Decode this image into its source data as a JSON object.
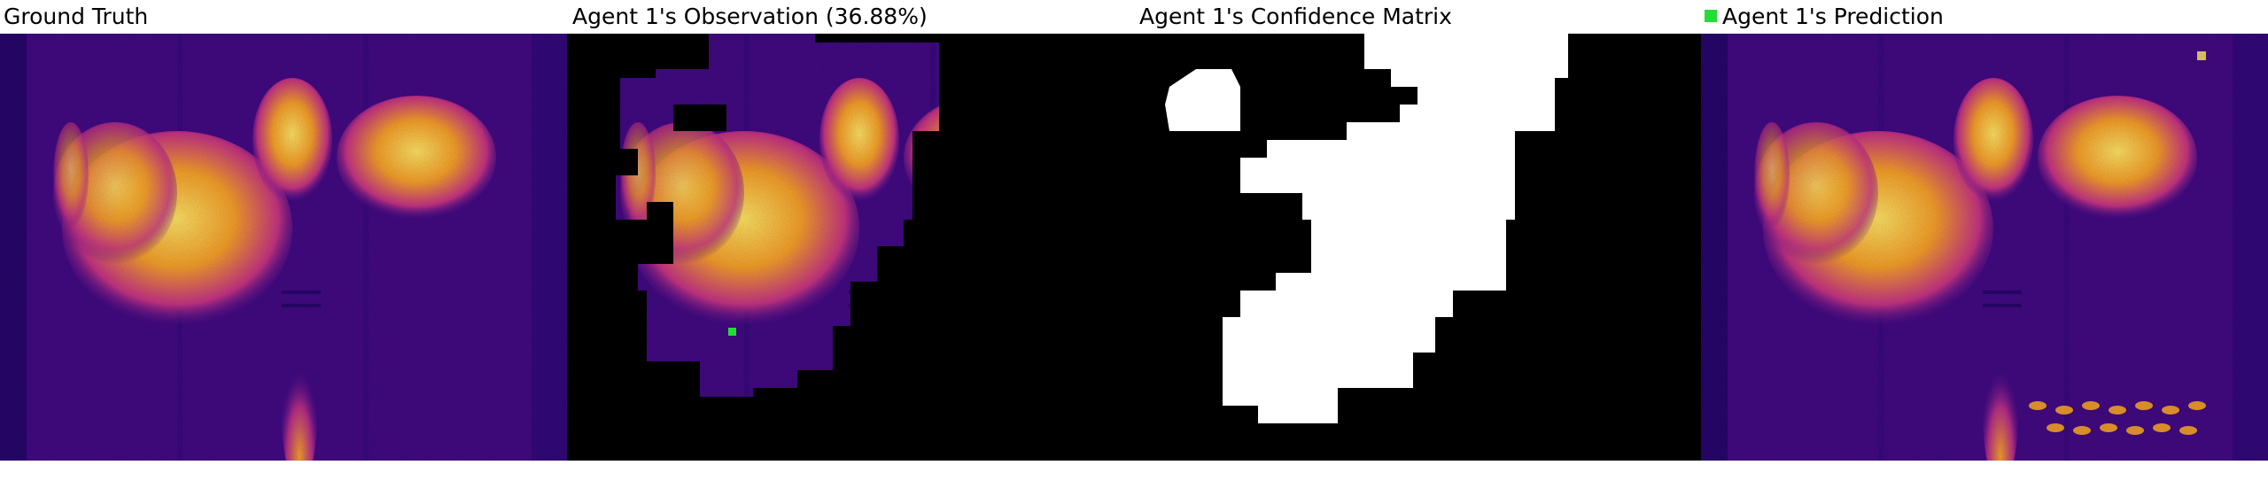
{
  "panels": {
    "ground_truth": {
      "title": "Ground Truth"
    },
    "observation": {
      "title": "Agent 1's Observation (36.88%)"
    },
    "confidence": {
      "title": "Agent 1's Confidence Matrix"
    },
    "prediction": {
      "title": "Agent 1's Prediction"
    }
  },
  "colors": {
    "heat_dark": "#23076b",
    "heat_mid": "#5a1486",
    "heat_hot": "#f3a51c",
    "heat_peak": "#fbe95a",
    "mask": "#000000",
    "confident": "#ffffff",
    "agent_marker": "#22dd33"
  },
  "icons": {
    "agent_marker": "green-square-icon"
  }
}
